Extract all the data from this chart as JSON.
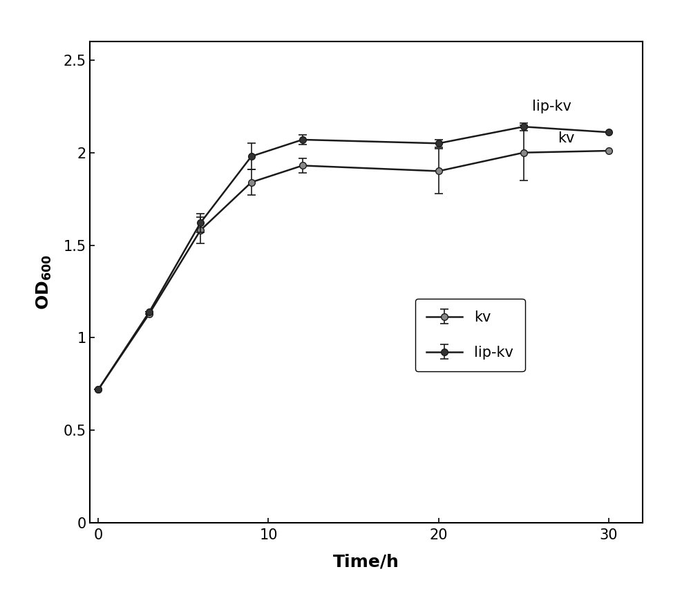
{
  "x": [
    0,
    3,
    6,
    9,
    12,
    20,
    25,
    30
  ],
  "kv_y": [
    0.72,
    1.13,
    1.58,
    1.84,
    1.93,
    1.9,
    2.0,
    2.01
  ],
  "lipkv_y": [
    0.72,
    1.14,
    1.62,
    1.98,
    2.07,
    2.05,
    2.14,
    2.11
  ],
  "kv_yerr": [
    0,
    0,
    0.07,
    0.07,
    0.04,
    0.12,
    0.15,
    0
  ],
  "lipkv_yerr": [
    0,
    0,
    0.05,
    0.07,
    0.025,
    0.02,
    0.02,
    0
  ],
  "kv_color": "#888888",
  "lipkv_color": "#333333",
  "line_color_kv": "#1a1a1a",
  "line_color_lipkv": "#1a1a1a",
  "xlabel": "Time/h",
  "xlim": [
    -0.5,
    32
  ],
  "ylim": [
    0,
    2.6
  ],
  "yticks": [
    0,
    0.5,
    1,
    1.5,
    2,
    2.5
  ],
  "xticks": [
    0,
    10,
    20,
    30
  ],
  "legend_labels": [
    "kv",
    "lip-kv"
  ],
  "annotation_lipkv": "lip-kv",
  "annotation_kv": "kv",
  "ann_lipkv_x": 25.5,
  "ann_lipkv_y": 2.21,
  "ann_kv_x": 27.0,
  "ann_kv_y": 2.04,
  "figsize": [
    10.0,
    8.59
  ],
  "dpi": 100
}
